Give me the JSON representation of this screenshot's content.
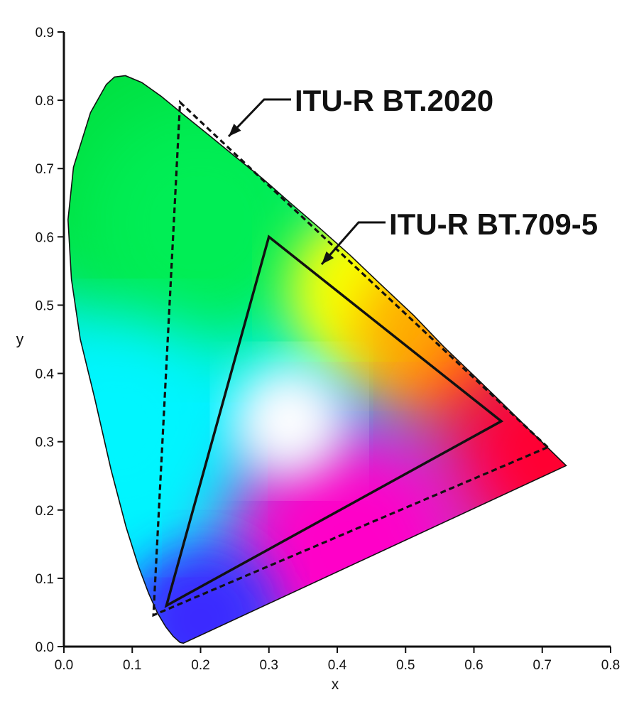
{
  "chart_data": {
    "type": "scatter",
    "title": "",
    "xlabel": "x",
    "ylabel": "y",
    "xlim": [
      0.0,
      0.8
    ],
    "ylim": [
      0.0,
      0.9
    ],
    "x_ticks": [
      "0.0",
      "0.1",
      "0.2",
      "0.3",
      "0.4",
      "0.5",
      "0.6",
      "0.7",
      "0.8"
    ],
    "y_ticks": [
      "0.0",
      "0.1",
      "0.2",
      "0.3",
      "0.4",
      "0.5",
      "0.6",
      "0.7",
      "0.8",
      "0.9"
    ],
    "x_tick_values": [
      0.0,
      0.1,
      0.2,
      0.3,
      0.4,
      0.5,
      0.6,
      0.7,
      0.8
    ],
    "y_tick_values": [
      0.0,
      0.1,
      0.2,
      0.3,
      0.4,
      0.5,
      0.6,
      0.7,
      0.8,
      0.9
    ],
    "grid": false,
    "spectral_locus": [
      [
        0.175,
        0.005
      ],
      [
        0.17,
        0.006
      ],
      [
        0.16,
        0.015
      ],
      [
        0.149,
        0.029
      ],
      [
        0.137,
        0.049
      ],
      [
        0.124,
        0.078
      ],
      [
        0.109,
        0.118
      ],
      [
        0.091,
        0.175
      ],
      [
        0.069,
        0.259
      ],
      [
        0.045,
        0.364
      ],
      [
        0.024,
        0.45
      ],
      [
        0.011,
        0.538
      ],
      [
        0.006,
        0.625
      ],
      [
        0.014,
        0.702
      ],
      [
        0.039,
        0.782
      ],
      [
        0.062,
        0.823
      ],
      [
        0.074,
        0.834
      ],
      [
        0.09,
        0.836
      ],
      [
        0.114,
        0.826
      ],
      [
        0.142,
        0.806
      ],
      [
        0.175,
        0.779
      ],
      [
        0.211,
        0.75
      ],
      [
        0.25,
        0.718
      ],
      [
        0.29,
        0.686
      ],
      [
        0.331,
        0.65
      ],
      [
        0.374,
        0.613
      ],
      [
        0.419,
        0.573
      ],
      [
        0.464,
        0.53
      ],
      [
        0.512,
        0.485
      ],
      [
        0.555,
        0.44
      ],
      [
        0.604,
        0.393
      ],
      [
        0.648,
        0.35
      ],
      [
        0.694,
        0.305
      ],
      [
        0.735,
        0.265
      ]
    ],
    "series": [
      {
        "name": "ITU-R BT.2020",
        "style": "dashed",
        "points": [
          [
            0.708,
            0.292
          ],
          [
            0.17,
            0.797
          ],
          [
            0.131,
            0.046
          ]
        ]
      },
      {
        "name": "ITU-R BT.709-5",
        "style": "solid",
        "points": [
          [
            0.64,
            0.33
          ],
          [
            0.3,
            0.6
          ],
          [
            0.15,
            0.06
          ]
        ]
      }
    ],
    "annotations": [
      {
        "text": "ITU-R BT.2020",
        "series": "ITU-R BT.2020"
      },
      {
        "text": "ITU-R BT.709-5",
        "series": "ITU-R BT.709-5"
      }
    ],
    "colors": {
      "axis": "#111111",
      "background": "#ffffff",
      "red": "#ff0030",
      "green": "#00e040",
      "blue": "#3a2cff",
      "white_point": "#ffffff"
    }
  }
}
